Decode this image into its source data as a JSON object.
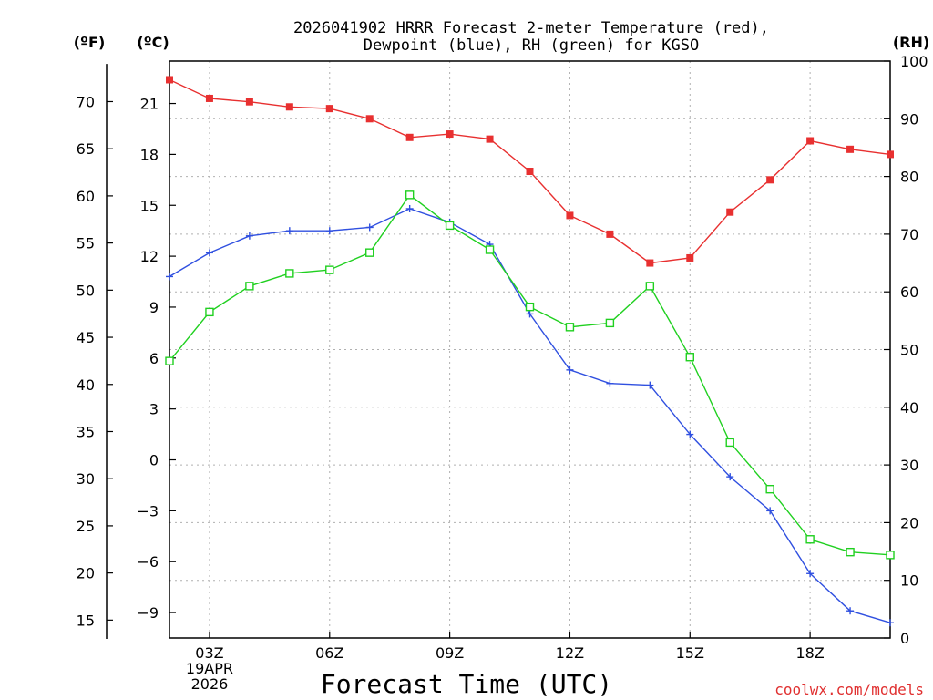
{
  "chart_data": {
    "type": "line",
    "title_lines": [
      "2026041902 HRRR Forecast 2-meter Temperature (red),",
      "Dewpoint (blue), RH (green) for KGSO"
    ],
    "xlabel": "Forecast Time (UTC)",
    "credit": "coolwx.com/models",
    "units": {
      "fahrenheit": "(ºF)",
      "celsius": "(ºC)",
      "rh": "(RH)"
    },
    "x": [
      2,
      3,
      4,
      5,
      6,
      7,
      8,
      9,
      10,
      11,
      12,
      13,
      14,
      15,
      16,
      17,
      18,
      19,
      20
    ],
    "xlim": [
      2,
      20
    ],
    "x_ticks": [
      {
        "x": 3,
        "lines": [
          "03Z",
          "19APR",
          "2026"
        ]
      },
      {
        "x": 6,
        "lines": [
          "06Z"
        ]
      },
      {
        "x": 9,
        "lines": [
          "09Z"
        ]
      },
      {
        "x": 12,
        "lines": [
          "12Z"
        ]
      },
      {
        "x": 15,
        "lines": [
          "15Z"
        ]
      },
      {
        "x": 18,
        "lines": [
          "18Z"
        ]
      }
    ],
    "celsius_axis": {
      "ylim": [
        -10.5,
        23.5
      ],
      "ticks": [
        "21",
        "18",
        "15",
        "12",
        "9",
        "6",
        "3",
        "0",
        "−3",
        "−6",
        "−9"
      ],
      "tick_values": [
        21,
        18,
        15,
        12,
        9,
        6,
        3,
        0,
        -3,
        -6,
        -9
      ]
    },
    "fahrenheit_axis": {
      "ticks": [
        "70",
        "65",
        "60",
        "55",
        "50",
        "45",
        "40",
        "35",
        "30",
        "25",
        "20",
        "15"
      ],
      "tick_values": [
        70,
        65,
        60,
        55,
        50,
        45,
        40,
        35,
        30,
        25,
        20,
        15
      ]
    },
    "rh_axis": {
      "ylim": [
        0,
        100
      ],
      "ticks": [
        "100",
        "90",
        "80",
        "70",
        "60",
        "50",
        "40",
        "30",
        "20",
        "10",
        "0"
      ],
      "tick_values": [
        100,
        90,
        80,
        70,
        60,
        50,
        40,
        30,
        20,
        10,
        0
      ]
    },
    "series": [
      {
        "name": "2-meter Temperature",
        "color": "#e83030",
        "marker": "filled-square",
        "axis": "celsius",
        "values": [
          22.4,
          21.3,
          21.1,
          20.8,
          20.7,
          20.1,
          19.0,
          19.2,
          18.9,
          17.0,
          14.4,
          13.3,
          11.6,
          11.9,
          14.6,
          16.5,
          18.8,
          18.3,
          18.0
        ]
      },
      {
        "name": "Dewpoint",
        "color": "#3050e0",
        "marker": "plus",
        "axis": "celsius",
        "values": [
          10.8,
          12.2,
          13.2,
          13.5,
          13.5,
          13.7,
          14.8,
          14.0,
          12.7,
          8.6,
          5.3,
          4.5,
          4.4,
          1.5,
          -1.0,
          -3.0,
          -6.7,
          -8.9,
          -9.6
        ]
      },
      {
        "name": "RH",
        "color": "#20d020",
        "marker": "open-square",
        "axis": "rh",
        "values": [
          48.0,
          56.5,
          61.0,
          63.2,
          63.8,
          66.8,
          76.8,
          71.5,
          67.3,
          57.4,
          53.9,
          54.6,
          61.0,
          48.7,
          33.9,
          25.8,
          17.1,
          14.9,
          14.4
        ]
      }
    ]
  }
}
